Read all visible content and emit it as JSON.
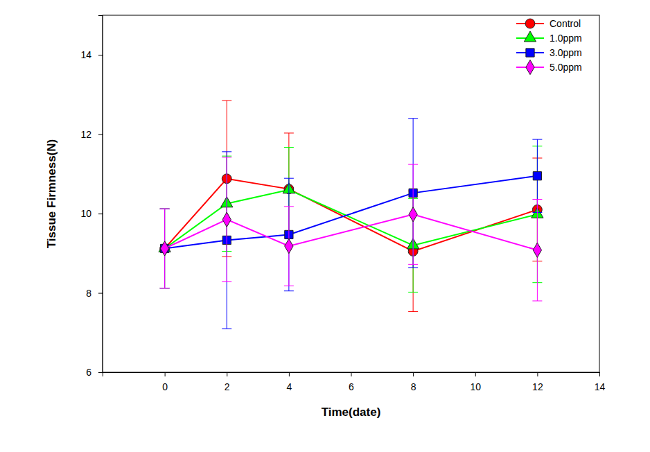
{
  "chart_data": {
    "type": "line",
    "x_label": "Time(date)",
    "y_label": "Tissue Firmness(N)",
    "x": [
      0,
      2,
      4,
      8,
      12
    ],
    "xlim": [
      -2,
      14
    ],
    "xticks": [
      0,
      2,
      4,
      6,
      8,
      10,
      12,
      14
    ],
    "ylim": [
      6,
      15
    ],
    "yticks": [
      6,
      8,
      10,
      12,
      14
    ],
    "grid": false,
    "legend": "upper right",
    "series": [
      {
        "name": "Control",
        "color": "#ff0000",
        "marker": "circle",
        "line_style": "solid",
        "values": [
          9.12,
          10.88,
          10.62,
          9.05,
          10.1
        ],
        "errors": [
          1.0,
          1.97,
          1.41,
          1.52,
          1.3
        ]
      },
      {
        "name": "1.0ppm",
        "color": "#00ff00",
        "marker": "triangle",
        "line_style": "solid",
        "values": [
          9.12,
          10.25,
          10.6,
          9.2,
          9.98
        ],
        "errors": [
          1.0,
          1.2,
          1.07,
          1.18,
          1.72
        ]
      },
      {
        "name": "3.0ppm",
        "color": "#0000ff",
        "marker": "square",
        "line_style": "solid",
        "values": [
          9.12,
          9.33,
          9.47,
          10.52,
          10.95
        ],
        "errors": [
          1.0,
          2.23,
          1.42,
          1.88,
          0.92
        ]
      },
      {
        "name": "5.0ppm",
        "color": "#ff00ff",
        "marker": "diamond",
        "line_style": "solid",
        "values": [
          9.12,
          9.85,
          9.18,
          9.98,
          9.08
        ],
        "errors": [
          1.0,
          1.57,
          1.0,
          1.26,
          1.28
        ]
      }
    ]
  }
}
